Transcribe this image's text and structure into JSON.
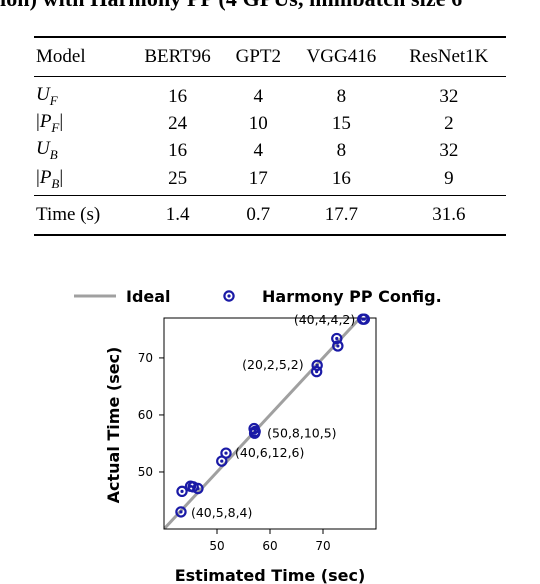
{
  "caption": "ion) with Harmony PP (4 GPUs, minibatch size 6",
  "table": {
    "header": [
      "Model",
      "BERT96",
      "GPT2",
      "VGG416",
      "ResNet1K"
    ],
    "param_rows": [
      {
        "label": "U_F",
        "values": [
          "16",
          "4",
          "8",
          "32"
        ]
      },
      {
        "label": "|P_F|",
        "values": [
          "24",
          "10",
          "15",
          "2"
        ]
      },
      {
        "label": "U_B",
        "values": [
          "16",
          "4",
          "8",
          "32"
        ]
      },
      {
        "label": "|P_B|",
        "values": [
          "25",
          "17",
          "16",
          "9"
        ]
      }
    ],
    "time_row": {
      "label": "Time (s)",
      "values": [
        "1.4",
        "0.7",
        "17.7",
        "31.6"
      ]
    }
  },
  "chart_data": {
    "type": "scatter",
    "xlabel": "Estimated Time (sec)",
    "ylabel": "Actual Time (sec)",
    "xlim": [
      40,
      80
    ],
    "ylim": [
      40,
      77
    ],
    "xticks": [
      50,
      60,
      70
    ],
    "yticks": [
      50,
      60,
      70
    ],
    "legend": {
      "placement": "top",
      "ideal_label": "Ideal",
      "points_label": "Harmony PP Config."
    },
    "colors": {
      "ideal": "#a0a0a0",
      "points": "#1a1aa6"
    },
    "points": [
      {
        "x": 43.2,
        "y": 43.0
      },
      {
        "x": 43.4,
        "y": 46.6
      },
      {
        "x": 45.0,
        "y": 47.5
      },
      {
        "x": 45.5,
        "y": 47.4
      },
      {
        "x": 46.4,
        "y": 47.1
      },
      {
        "x": 50.9,
        "y": 51.9
      },
      {
        "x": 51.7,
        "y": 53.3
      },
      {
        "x": 57.0,
        "y": 57.6
      },
      {
        "x": 57.1,
        "y": 56.8
      },
      {
        "x": 57.2,
        "y": 57.1
      },
      {
        "x": 68.8,
        "y": 67.6
      },
      {
        "x": 68.9,
        "y": 68.7
      },
      {
        "x": 72.6,
        "y": 73.4
      },
      {
        "x": 72.8,
        "y": 72.1
      },
      {
        "x": 77.5,
        "y": 76.8
      },
      {
        "x": 77.8,
        "y": 76.8
      }
    ],
    "annotations": [
      {
        "text": "(40,4,4,2)",
        "x": 77.6,
        "y": 76.8
      },
      {
        "text": "(20,2,5,2)",
        "x": 68.8,
        "y": 68.4
      },
      {
        "text": "(50,8,10,5)",
        "x": 57.2,
        "y": 57.1
      },
      {
        "text": "(40,6,12,6)",
        "x": 51.7,
        "y": 53.3
      },
      {
        "text": "(40,5,8,4)",
        "x": 43.2,
        "y": 43.0
      }
    ]
  }
}
